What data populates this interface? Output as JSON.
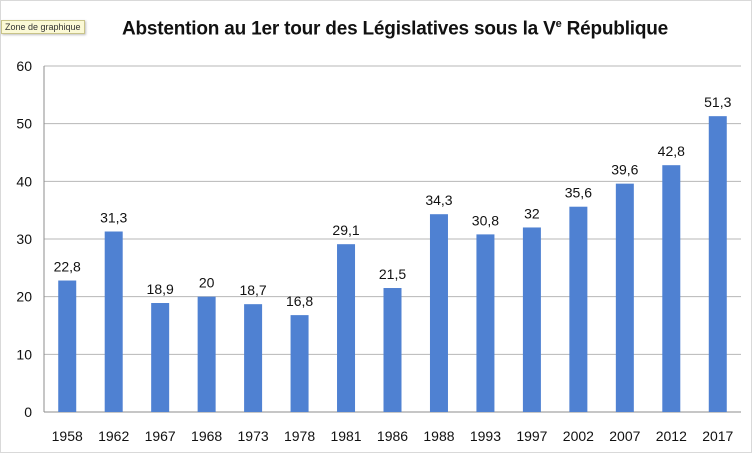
{
  "tooltip": "Zone de graphique",
  "chart_data": {
    "type": "bar",
    "title": "Abstention au 1er tour des Législatives sous la V",
    "title_superscript": "e",
    "title_suffix": " République",
    "categories": [
      "1958",
      "1962",
      "1967",
      "1968",
      "1973",
      "1978",
      "1981",
      "1986",
      "1988",
      "1993",
      "1997",
      "2002",
      "2007",
      "2012",
      "2017"
    ],
    "values": [
      22.8,
      31.3,
      18.9,
      20,
      18.7,
      16.8,
      29.1,
      21.5,
      34.3,
      30.8,
      32,
      35.6,
      39.6,
      42.8,
      51.3
    ],
    "value_labels": [
      "22,8",
      "31,3",
      "18,9",
      "20",
      "18,7",
      "16,8",
      "29,1",
      "21,5",
      "34,3",
      "30,8",
      "32",
      "35,6",
      "39,6",
      "42,8",
      "51,3"
    ],
    "yticks": [
      "0",
      "10",
      "20",
      "30",
      "40",
      "50",
      "60"
    ],
    "ylim": [
      0,
      60
    ],
    "grid": true,
    "bar_color": "#4f81d2",
    "grid_color": "#b7b7b7"
  }
}
